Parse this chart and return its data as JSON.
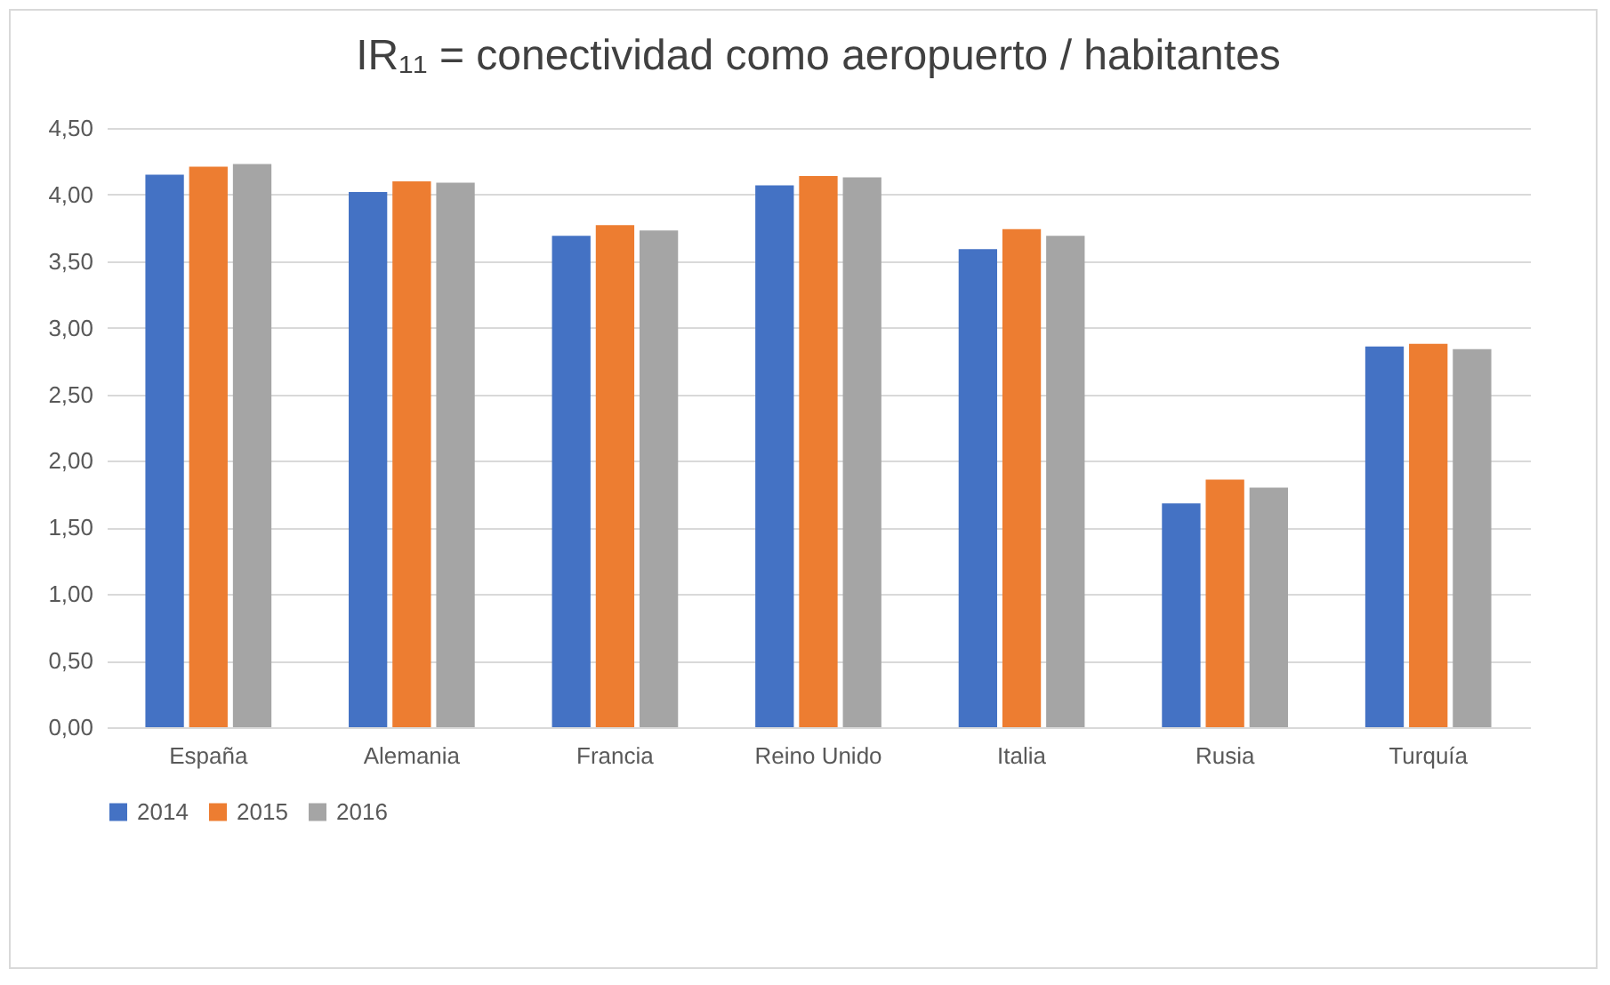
{
  "chart_data": {
    "type": "bar",
    "title": "IR₁₁ = conectividad como aeropuerto / habitantes",
    "categories": [
      "España",
      "Alemania",
      "Francia",
      "Reino Unido",
      "Italia",
      "Rusia",
      "Turquía"
    ],
    "series": [
      {
        "name": "2014",
        "color": "#4472c4",
        "values": [
          4.15,
          4.02,
          3.69,
          4.07,
          3.59,
          1.68,
          2.86
        ]
      },
      {
        "name": "2015",
        "color": "#ed7d31",
        "values": [
          4.21,
          4.1,
          3.77,
          4.14,
          3.74,
          1.86,
          2.88
        ]
      },
      {
        "name": "2016",
        "color": "#a5a5a5",
        "values": [
          4.23,
          4.09,
          3.73,
          4.13,
          3.69,
          1.8,
          2.84
        ]
      }
    ],
    "ylim": [
      0,
      4.5
    ],
    "yticks": [
      {
        "value": 0,
        "label": "0,00"
      },
      {
        "value": 0.5,
        "label": "0,50"
      },
      {
        "value": 1,
        "label": "1,00"
      },
      {
        "value": 1.5,
        "label": "1,50"
      },
      {
        "value": 2,
        "label": "2,00"
      },
      {
        "value": 2.5,
        "label": "2,50"
      },
      {
        "value": 3,
        "label": "3,00"
      },
      {
        "value": 3.5,
        "label": "3,50"
      },
      {
        "value": 4,
        "label": "4,00"
      },
      {
        "value": 4.5,
        "label": "4,50"
      }
    ],
    "grid": "y",
    "legend": "bottom"
  }
}
